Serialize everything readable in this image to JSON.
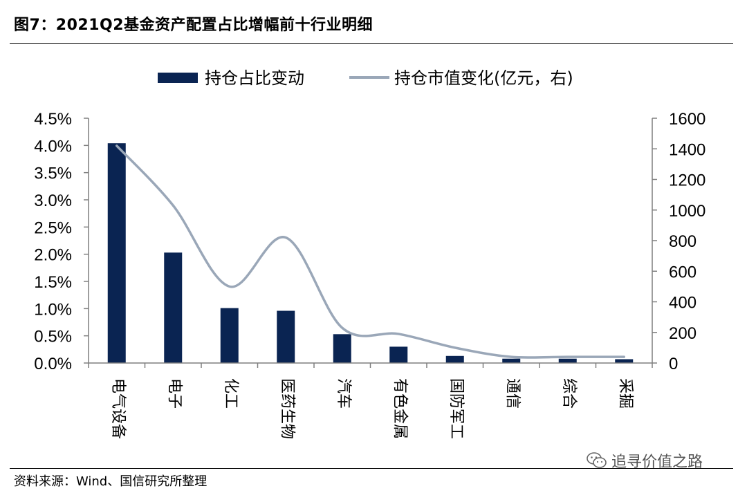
{
  "title": "图7：2021Q2基金资产配置占比增幅前十行业明细",
  "source": "资料来源：Wind、国信研究所整理",
  "watermark": "追寻价值之路",
  "watermark_icon": "wechat-icon",
  "colors": {
    "bar": "#0a2452",
    "line": "#9aa7b8",
    "axis": "#7f7f7f"
  },
  "chart_data": {
    "type": "bar",
    "title": "",
    "xlabel": "",
    "ylabel": "",
    "categories": [
      "电气设备",
      "电子",
      "化工",
      "医药生物",
      "汽车",
      "有色金属",
      "国防军工",
      "通信",
      "综合",
      "采掘"
    ],
    "series": [
      {
        "name": "持仓占比变动",
        "type": "bar",
        "axis": "left",
        "values": [
          0.0404,
          0.0203,
          0.0101,
          0.0096,
          0.0053,
          0.003,
          0.0013,
          0.0008,
          0.0008,
          0.0007
        ]
      },
      {
        "name": "持仓市值变化(亿元，右)",
        "type": "line",
        "axis": "right",
        "smooth": true,
        "values": [
          1420,
          1030,
          500,
          820,
          230,
          190,
          100,
          40,
          40,
          40
        ]
      }
    ],
    "ylim_left": [
      0,
      0.045
    ],
    "yticks_left": [
      "0.0%",
      "0.5%",
      "1.0%",
      "1.5%",
      "2.0%",
      "2.5%",
      "3.0%",
      "3.5%",
      "4.0%",
      "4.5%"
    ],
    "ylim_right": [
      0,
      1600
    ],
    "yticks_right": [
      "0",
      "200",
      "400",
      "600",
      "800",
      "1000",
      "1200",
      "1400",
      "1600"
    ],
    "legend_position": "top-center",
    "grid": false
  }
}
